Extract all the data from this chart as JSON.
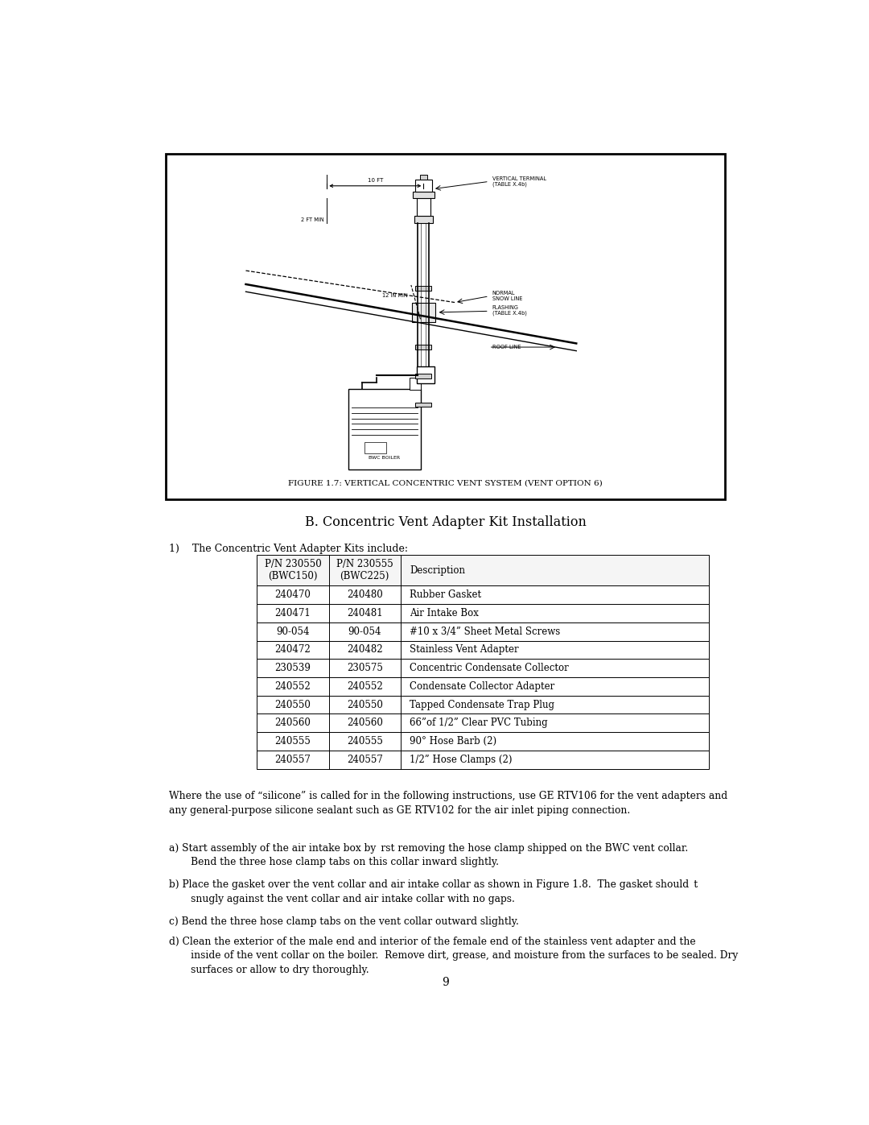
{
  "bg_color": "#ffffff",
  "page_width": 10.8,
  "page_height": 13.97,
  "figure_caption": "FIGURE 1.7: VERTICAL CONCENTRIC VENT SYSTEM (VENT OPTION 6)",
  "section_title": "B. Concentric Vent Adapter Kit Installation",
  "intro_text": "1)    The Concentric Vent Adapter Kits include:",
  "table": {
    "col_headers": [
      "P/N 230550\n(BWC150)",
      "P/N 230555\n(BWC225)",
      "Description"
    ],
    "rows": [
      [
        "240470",
        "240480",
        "Rubber Gasket"
      ],
      [
        "240471",
        "240481",
        "Air Intake Box"
      ],
      [
        "90-054",
        "90-054",
        "#10 x 3/4” Sheet Metal Screws"
      ],
      [
        "240472",
        "240482",
        "Stainless Vent Adapter"
      ],
      [
        "230539",
        "230575",
        "Concentric Condensate Collector"
      ],
      [
        "240552",
        "240552",
        "Condensate Collector Adapter"
      ],
      [
        "240550",
        "240550",
        "Tapped Condensate Trap Plug"
      ],
      [
        "240560",
        "240560",
        "66”of 1/2” Clear PVC Tubing"
      ],
      [
        "240555",
        "240555",
        "90° Hose Barb (2)"
      ],
      [
        "240557",
        "240557",
        "1/2” Hose Clamps (2)"
      ]
    ]
  },
  "silicone_note": "Where the use of “silicone” is called for in the following instructions, use GE RTV106 for the vent adapters and\nany general-purpose silicone sealant such as GE RTV102 for the air inlet piping connection.",
  "steps": [
    "a) Start assembly of the air intake box by rst removing the hose clamp shipped on the BWC vent collar.\n       Bend the three hose clamp tabs on this collar inward slightly.",
    "b) Place the gasket over the vent collar and air intake collar as shown in Figure 1.8.  The gasket should t\n       snugly against the vent collar and air intake collar with no gaps.",
    "c) Bend the three hose clamp tabs on the vent collar outward slightly.",
    "d) Clean the exterior of the male end and interior of the female end of the stainless vent adapter and the\n       inside of the vent collar on the boiler.  Remove dirt, grease, and moisture from the surfaces to be sealed. Dry\n       surfaces or allow to dry thoroughly."
  ],
  "page_number": "9"
}
